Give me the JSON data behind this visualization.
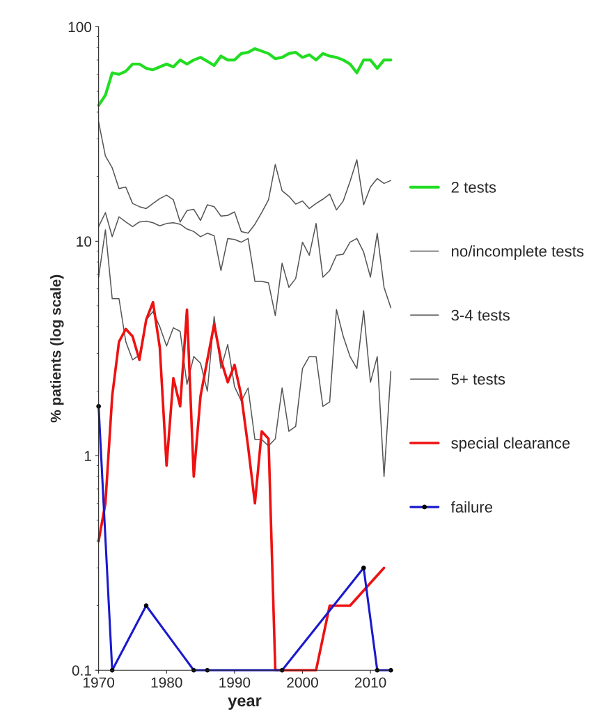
{
  "chart_data": {
    "type": "line",
    "xlabel": "year",
    "ylabel": "% patients (log scale)",
    "log": "y",
    "xlim": [
      1970,
      2013
    ],
    "xticks": [
      1970,
      1980,
      1990,
      2000,
      2010
    ],
    "ylim": [
      0.1,
      100
    ],
    "yticks": [
      0.1,
      1,
      10,
      100
    ],
    "grid": false,
    "legend": "right",
    "series": [
      {
        "name": "2 tests",
        "color": "#22dd22",
        "x": [
          1970,
          1971,
          1972,
          1973,
          1974,
          1975,
          1976,
          1977,
          1978,
          1979,
          1980,
          1981,
          1982,
          1983,
          1984,
          1985,
          1986,
          1987,
          1988,
          1989,
          1990,
          1991,
          1992,
          1993,
          1994,
          1995,
          1996,
          1997,
          1998,
          1999,
          2000,
          2001,
          2002,
          2003,
          2004,
          2005,
          2006,
          2007,
          2008,
          2009,
          2010,
          2011,
          2012,
          2013
        ],
        "values": [
          43,
          48,
          61,
          60,
          62,
          67,
          67,
          64,
          63,
          65,
          67,
          65,
          70,
          67,
          70,
          72,
          69,
          66,
          73,
          70,
          70,
          75,
          76,
          79,
          77,
          75,
          71,
          72,
          75,
          76,
          72,
          74,
          70,
          75,
          73,
          72,
          70,
          67,
          61,
          70,
          70,
          64,
          70,
          70
        ]
      },
      {
        "name": "no/incomplete tests",
        "color": "#555555",
        "x": [
          1970,
          1971,
          1972,
          1973,
          1974,
          1975,
          1976,
          1977,
          1978,
          1979,
          1980,
          1981,
          1982,
          1983,
          1984,
          1985,
          1986,
          1987,
          1988,
          1989,
          1990,
          1991,
          1992,
          1993,
          1994,
          1995,
          1996,
          1997,
          1998,
          1999,
          2000,
          2001,
          2002,
          2003,
          2004,
          2005,
          2006,
          2007,
          2008,
          2009,
          2010,
          2011,
          2012,
          2013
        ],
        "values": [
          36,
          25,
          22,
          17.6,
          17.9,
          15,
          14.5,
          14.2,
          15,
          15.8,
          16.4,
          15.6,
          12.3,
          13.9,
          14.1,
          12.5,
          14.8,
          14.5,
          13.1,
          13.2,
          13.7,
          11.1,
          10.9,
          12,
          13.6,
          15.6,
          22.8,
          17.2,
          16.2,
          14.9,
          15.4,
          14.2,
          15,
          15.7,
          16.6,
          14,
          15.4,
          19,
          24,
          14.8,
          17.9,
          19.6,
          18.6,
          19.2
        ]
      },
      {
        "name": "3-4 tests",
        "color": "#555555",
        "x": [
          1970,
          1971,
          1972,
          1973,
          1974,
          1975,
          1976,
          1977,
          1978,
          1979,
          1980,
          1981,
          1982,
          1983,
          1984,
          1985,
          1986,
          1987,
          1988,
          1989,
          1990,
          1991,
          1992,
          1993,
          1994,
          1995,
          1996,
          1997,
          1998,
          1999,
          2000,
          2001,
          2002,
          2003,
          2004,
          2005,
          2006,
          2007,
          2008,
          2009,
          2010,
          2011,
          2012,
          2013
        ],
        "values": [
          11.7,
          13.6,
          10.5,
          13,
          12.3,
          11.7,
          12.3,
          12.4,
          12.2,
          11.8,
          12.1,
          12.2,
          12,
          11.4,
          11.1,
          10.5,
          10.9,
          10.6,
          7.3,
          10.3,
          10.2,
          9.9,
          10.3,
          6.5,
          6.5,
          6.4,
          4.5,
          7.9,
          6.1,
          6.7,
          9.9,
          8.6,
          12.1,
          6.8,
          7.3,
          8.6,
          8.7,
          9.9,
          10.3,
          8.9,
          6.8,
          10.9,
          6.1,
          4.9
        ]
      },
      {
        "name": "5+ tests",
        "color": "#555555",
        "x": [
          1970,
          1971,
          1972,
          1973,
          1974,
          1975,
          1976,
          1977,
          1978,
          1979,
          1980,
          1981,
          1982,
          1983,
          1984,
          1985,
          1986,
          1987,
          1988,
          1989,
          1990,
          1991,
          1992,
          1993,
          1994,
          1995,
          1996,
          1997,
          1998,
          1999,
          2000,
          2001,
          2002,
          2003,
          2004,
          2005,
          2006,
          2007,
          2008,
          2009,
          2010,
          2011,
          2012,
          2013
        ],
        "values": [
          6.8,
          11.3,
          5.4,
          5.4,
          3.4,
          2.8,
          2.95,
          4.3,
          4.7,
          4,
          3.25,
          3.95,
          3.8,
          2.15,
          2.9,
          2.7,
          2,
          4.45,
          2.55,
          3.3,
          2.1,
          1.8,
          2.07,
          1.19,
          1.19,
          1.11,
          1.2,
          2.07,
          1.3,
          1.37,
          2.55,
          2.9,
          2.9,
          1.7,
          1.78,
          4.8,
          3.6,
          2.9,
          2.55,
          4.75,
          2.2,
          2.9,
          0.8,
          2.47
        ]
      },
      {
        "name": "special clearance",
        "color": "#ee1111",
        "x": [
          1970,
          1971,
          1972,
          1973,
          1974,
          1975,
          1976,
          1977,
          1978,
          1979,
          1980,
          1981,
          1982,
          1983,
          1984,
          1985,
          1986,
          1987,
          1988,
          1989,
          1990,
          1991,
          1992,
          1993,
          1994,
          1995,
          1996,
          2002,
          2004,
          2007,
          2012
        ],
        "values": [
          0.4,
          0.6,
          1.9,
          3.4,
          3.9,
          3.6,
          2.8,
          4.3,
          5.2,
          3.2,
          0.9,
          2.3,
          1.7,
          4.8,
          0.8,
          1.9,
          2.8,
          4.1,
          2.8,
          2.2,
          2.65,
          1.9,
          1.1,
          0.6,
          1.3,
          1.2,
          0.1,
          0.1,
          0.2,
          0.2,
          0.3
        ]
      },
      {
        "name": "failure",
        "color": "#1a1acc",
        "marker": "circle",
        "x": [
          1970,
          1972,
          1977,
          1984,
          1986,
          1997,
          2009,
          2011,
          2013
        ],
        "values": [
          1.7,
          0.1,
          0.2,
          0.1,
          0.1,
          0.1,
          0.3,
          0.1,
          0.1
        ]
      }
    ]
  }
}
